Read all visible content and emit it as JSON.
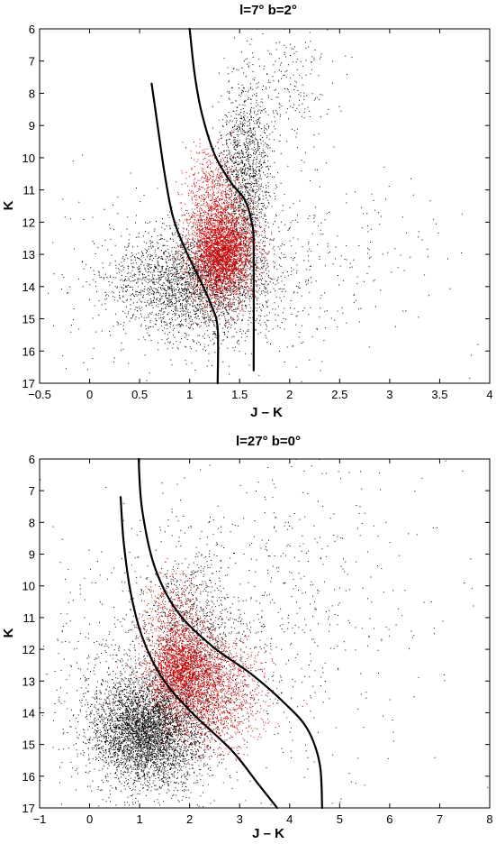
{
  "chart_data": [
    {
      "type": "scatter",
      "title": "l=7°     b=2°",
      "xlabel": "J – K",
      "ylabel": "K",
      "xlim": [
        -0.5,
        4
      ],
      "ylim": [
        6,
        17
      ],
      "y_inverted": true,
      "x_ticks": [
        "-0.5",
        "0",
        "0.5",
        "1",
        "1.5",
        "2",
        "2.5",
        "3",
        "3.5",
        "4"
      ],
      "y_ticks": [
        "6",
        "7",
        "8",
        "9",
        "10",
        "11",
        "12",
        "13",
        "14",
        "15",
        "16",
        "17"
      ],
      "grid": false,
      "series": [
        {
          "color": "#000000",
          "clusters": [
            {
              "cx": 1.05,
              "cy": 13.9,
              "sx": 0.42,
              "sy": 0.85,
              "n": 2600
            },
            {
              "cx": 1.55,
              "cy": 10.5,
              "sx": 0.13,
              "sy": 1.3,
              "n": 1300
            },
            {
              "cx": 1.95,
              "cy": 7.8,
              "sx": 0.25,
              "sy": 0.9,
              "n": 220
            },
            {
              "cx": 1.6,
              "cy": 13.5,
              "sx": 0.9,
              "sy": 1.6,
              "n": 600
            }
          ]
        },
        {
          "color": "#cc0000",
          "clusters": [
            {
              "cx": 1.32,
              "cy": 12.9,
              "sx": 0.16,
              "sy": 0.75,
              "n": 3600
            },
            {
              "cx": 1.22,
              "cy": 11.0,
              "sx": 0.14,
              "sy": 0.7,
              "n": 500
            }
          ]
        }
      ],
      "boundary_lines": [
        [
          [
            0.62,
            7.7
          ],
          [
            0.68,
            9.0
          ],
          [
            0.75,
            10.5
          ],
          [
            0.83,
            11.8
          ],
          [
            0.95,
            12.8
          ],
          [
            1.12,
            13.9
          ],
          [
            1.22,
            14.6
          ],
          [
            1.28,
            15.3
          ],
          [
            1.28,
            17.0
          ]
        ],
        [
          [
            1.0,
            6.0
          ],
          [
            1.05,
            7.4
          ],
          [
            1.12,
            8.6
          ],
          [
            1.25,
            9.9
          ],
          [
            1.42,
            10.8
          ],
          [
            1.55,
            11.3
          ],
          [
            1.62,
            12.0
          ],
          [
            1.64,
            12.8
          ],
          [
            1.64,
            16.6
          ]
        ]
      ]
    },
    {
      "type": "scatter",
      "title": "l=27°     b=0°",
      "xlabel": "J – K",
      "ylabel": "K",
      "xlim": [
        -1,
        8
      ],
      "ylim": [
        6,
        17
      ],
      "y_inverted": true,
      "x_ticks": [
        "-1",
        "0",
        "1",
        "2",
        "3",
        "4",
        "5",
        "6",
        "7",
        "8"
      ],
      "y_ticks": [
        "6",
        "7",
        "8",
        "9",
        "10",
        "11",
        "12",
        "13",
        "14",
        "15",
        "16",
        "17"
      ],
      "grid": false,
      "series": [
        {
          "color": "#000000",
          "clusters": [
            {
              "cx": 1.15,
              "cy": 14.6,
              "sx": 0.55,
              "sy": 0.85,
              "n": 4000
            },
            {
              "cx": 2.1,
              "cy": 11.5,
              "sx": 0.45,
              "sy": 1.3,
              "n": 900
            },
            {
              "cx": 3.5,
              "cy": 11.0,
              "sx": 1.6,
              "sy": 2.6,
              "n": 700
            },
            {
              "cx": 1.0,
              "cy": 13.5,
              "sx": 0.9,
              "sy": 1.8,
              "n": 800
            }
          ]
        },
        {
          "color": "#cc0000",
          "clusters": [
            {
              "cx": 1.85,
              "cy": 12.6,
              "sx": 0.35,
              "sy": 0.6,
              "n": 1900
            },
            {
              "cx": 2.35,
              "cy": 13.4,
              "sx": 0.55,
              "sy": 0.9,
              "n": 1700
            },
            {
              "cx": 1.7,
              "cy": 10.9,
              "sx": 0.3,
              "sy": 0.7,
              "n": 400
            }
          ]
        }
      ],
      "boundary_lines": [
        [
          [
            0.62,
            7.2
          ],
          [
            0.68,
            8.6
          ],
          [
            0.82,
            10.2
          ],
          [
            1.05,
            11.6
          ],
          [
            1.45,
            12.9
          ],
          [
            2.05,
            14.0
          ],
          [
            2.85,
            15.2
          ],
          [
            3.35,
            16.2
          ],
          [
            3.75,
            17.0
          ]
        ],
        [
          [
            0.98,
            6.0
          ],
          [
            1.05,
            7.6
          ],
          [
            1.3,
            9.4
          ],
          [
            1.75,
            10.8
          ],
          [
            2.45,
            11.9
          ],
          [
            3.25,
            12.8
          ],
          [
            3.9,
            13.7
          ],
          [
            4.35,
            14.5
          ],
          [
            4.6,
            15.6
          ],
          [
            4.65,
            17.0
          ]
        ]
      ]
    }
  ]
}
